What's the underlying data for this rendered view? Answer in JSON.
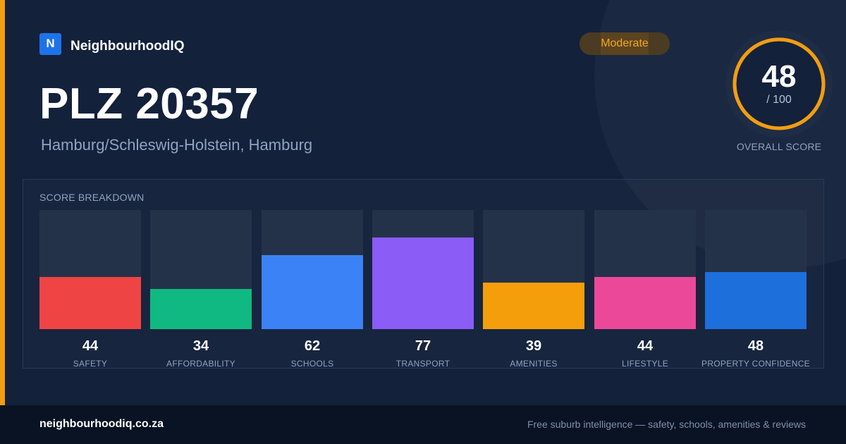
{
  "brand": {
    "logo_letter": "N",
    "name": "NeighbourhoodIQ"
  },
  "badge": {
    "label": "Moderate"
  },
  "header": {
    "title": "PLZ 20357",
    "subtitle": "Hamburg/Schleswig-Holstein, Hamburg"
  },
  "overall": {
    "value": "48",
    "max_label": "/ 100",
    "caption": "OVERALL SCORE",
    "fraction": 0.48,
    "ring_color": "#f29d12"
  },
  "breakdown": {
    "title": "SCORE BREAKDOWN",
    "items": [
      {
        "label": "SAFETY",
        "value": "44",
        "score": 44,
        "color": "#ef4444"
      },
      {
        "label": "AFFORDABILITY",
        "value": "34",
        "score": 34,
        "color": "#10b981"
      },
      {
        "label": "SCHOOLS",
        "value": "62",
        "score": 62,
        "color": "#3b82f6"
      },
      {
        "label": "TRANSPORT",
        "value": "77",
        "score": 77,
        "color": "#8b5cf6"
      },
      {
        "label": "AMENITIES",
        "value": "39",
        "score": 39,
        "color": "#f59e0b"
      },
      {
        "label": "LIFESTYLE",
        "value": "44",
        "score": 44,
        "color": "#ec4899"
      },
      {
        "label": "PROPERTY CONFIDENCE",
        "value": "48",
        "score": 48,
        "color": "#1d6fdc"
      }
    ]
  },
  "footer": {
    "site": "neighbourhoodiq.co.za",
    "tagline": "Free suburb intelligence — safety, schools, amenities & reviews"
  },
  "colors": {
    "accent": "#f29d12",
    "background": "#13213b",
    "footer": "#0a1324"
  }
}
